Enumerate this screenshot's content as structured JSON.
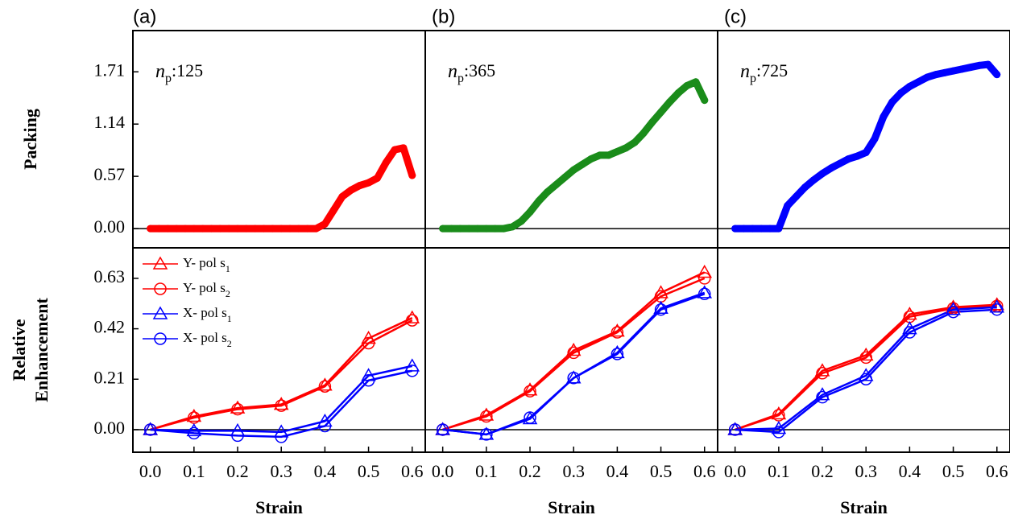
{
  "chart_data": [
    {
      "type": "scatter",
      "panel_label": "(a)",
      "annotation": "np:125",
      "ylabel": [
        "Packing"
      ],
      "x": [
        0,
        0.02,
        0.04,
        0.06,
        0.08,
        0.1,
        0.12,
        0.14,
        0.16,
        0.18,
        0.2,
        0.22,
        0.24,
        0.26,
        0.28,
        0.3,
        0.32,
        0.34,
        0.36,
        0.38,
        0.4,
        0.42,
        0.44,
        0.46,
        0.48,
        0.5,
        0.52,
        0.54,
        0.56,
        0.58,
        0.6
      ],
      "series": [
        {
          "color": "#ff0000",
          "values": [
            0,
            0,
            0,
            0,
            0,
            0,
            0,
            0,
            0,
            0,
            0,
            0,
            0,
            0,
            0,
            0,
            0,
            0,
            0,
            0,
            0.05,
            0.2,
            0.35,
            0.42,
            0.47,
            0.5,
            0.55,
            0.72,
            0.86,
            0.88,
            0.58
          ]
        }
      ],
      "xlim": [
        -0.04,
        0.63
      ],
      "ylim": [
        -0.21,
        2.16
      ],
      "yticks": [
        {
          "value": 0,
          "label": "0.00"
        },
        0.57,
        1.14,
        1.71
      ]
    },
    {
      "type": "scatter",
      "panel_label": "(b)",
      "annotation": "np:365",
      "x": [
        0,
        0.02,
        0.04,
        0.06,
        0.08,
        0.1,
        0.12,
        0.14,
        0.16,
        0.18,
        0.2,
        0.22,
        0.24,
        0.26,
        0.28,
        0.3,
        0.32,
        0.34,
        0.36,
        0.38,
        0.4,
        0.42,
        0.44,
        0.46,
        0.48,
        0.5,
        0.52,
        0.54,
        0.56,
        0.58,
        0.6
      ],
      "series": [
        {
          "color": "#1a8c1a",
          "values": [
            0,
            0,
            0,
            0,
            0,
            0,
            0,
            0,
            0.02,
            0.08,
            0.18,
            0.3,
            0.4,
            0.48,
            0.56,
            0.64,
            0.7,
            0.76,
            0.8,
            0.8,
            0.84,
            0.88,
            0.94,
            1.04,
            1.16,
            1.27,
            1.38,
            1.48,
            1.56,
            1.6,
            1.4
          ]
        }
      ],
      "xlim": [
        -0.04,
        0.63
      ],
      "ylim": [
        -0.21,
        2.16
      ]
    },
    {
      "type": "scatter",
      "panel_label": "(c)",
      "annotation": "np:725",
      "x": [
        0,
        0.02,
        0.04,
        0.06,
        0.08,
        0.1,
        0.12,
        0.14,
        0.16,
        0.18,
        0.2,
        0.22,
        0.24,
        0.26,
        0.28,
        0.3,
        0.32,
        0.34,
        0.36,
        0.38,
        0.4,
        0.42,
        0.44,
        0.46,
        0.48,
        0.5,
        0.52,
        0.54,
        0.56,
        0.58,
        0.6
      ],
      "series": [
        {
          "color": "#0000ff",
          "values": [
            0,
            0,
            0,
            0,
            0,
            0,
            0.25,
            0.35,
            0.45,
            0.53,
            0.6,
            0.66,
            0.71,
            0.76,
            0.79,
            0.83,
            0.98,
            1.22,
            1.38,
            1.48,
            1.55,
            1.6,
            1.65,
            1.68,
            1.7,
            1.72,
            1.74,
            1.76,
            1.78,
            1.79,
            1.68
          ]
        }
      ],
      "xlim": [
        -0.04,
        0.63
      ],
      "ylim": [
        -0.21,
        2.16
      ]
    },
    {
      "type": "line",
      "ylabel": [
        "Relative",
        "Enhancement"
      ],
      "xlabel": "Strain",
      "legend": "upper left",
      "x": [
        0,
        0.1,
        0.2,
        0.3,
        0.4,
        0.5,
        0.6
      ],
      "series": [
        {
          "name": "Y- pol s1",
          "color": "#ff0000",
          "marker": "triangle",
          "values": [
            0,
            0.055,
            0.09,
            0.105,
            0.185,
            0.38,
            0.465
          ]
        },
        {
          "name": "Y- pol s2",
          "color": "#ff0000",
          "marker": "circle",
          "values": [
            0,
            0.05,
            0.085,
            0.1,
            0.18,
            0.36,
            0.455
          ]
        },
        {
          "name": "X- pol s1",
          "color": "#0000ff",
          "marker": "triangle",
          "values": [
            0,
            -0.005,
            -0.005,
            -0.01,
            0.035,
            0.225,
            0.265
          ]
        },
        {
          "name": "X- pol s2",
          "color": "#0000ff",
          "marker": "circle",
          "values": [
            0,
            -0.015,
            -0.025,
            -0.03,
            0.015,
            0.205,
            0.245
          ]
        }
      ],
      "xlim": [
        -0.04,
        0.63
      ],
      "ylim": [
        -0.094,
        0.757
      ],
      "xticks": [
        {
          "value": 0,
          "label": "0.0"
        },
        0.1,
        0.2,
        0.3,
        0.4,
        0.5,
        0.6
      ],
      "yticks": [
        {
          "value": 0,
          "label": "0.00"
        },
        0.21,
        0.42,
        0.63
      ]
    },
    {
      "type": "line",
      "xlabel": "Strain",
      "x": [
        0,
        0.1,
        0.2,
        0.3,
        0.4,
        0.5,
        0.6
      ],
      "series": [
        {
          "color": "#ff0000",
          "marker": "triangle",
          "values": [
            0,
            0.06,
            0.165,
            0.33,
            0.41,
            0.57,
            0.655
          ]
        },
        {
          "color": "#ff0000",
          "marker": "circle",
          "values": [
            0,
            0.055,
            0.16,
            0.32,
            0.405,
            0.555,
            0.63
          ]
        },
        {
          "color": "#0000ff",
          "marker": "triangle",
          "values": [
            0,
            -0.02,
            0.045,
            0.215,
            0.32,
            0.505,
            0.57
          ]
        },
        {
          "color": "#0000ff",
          "marker": "circle",
          "values": [
            0,
            -0.02,
            0.05,
            0.215,
            0.315,
            0.5,
            0.565
          ]
        }
      ],
      "xlim": [
        -0.04,
        0.63
      ],
      "ylim": [
        -0.094,
        0.757
      ],
      "xticks": [
        {
          "value": 0,
          "label": "0.0"
        },
        0.1,
        0.2,
        0.3,
        0.4,
        0.5,
        0.6
      ]
    },
    {
      "type": "line",
      "xlabel": "Strain",
      "x": [
        0,
        0.1,
        0.2,
        0.3,
        0.4,
        0.5,
        0.6
      ],
      "series": [
        {
          "color": "#ff0000",
          "marker": "triangle",
          "values": [
            0,
            0.065,
            0.245,
            0.31,
            0.48,
            0.51,
            0.52
          ]
        },
        {
          "color": "#ff0000",
          "marker": "circle",
          "values": [
            0,
            0.06,
            0.235,
            0.3,
            0.47,
            0.505,
            0.515
          ]
        },
        {
          "color": "#0000ff",
          "marker": "triangle",
          "values": [
            0,
            0.005,
            0.145,
            0.225,
            0.42,
            0.5,
            0.51
          ]
        },
        {
          "color": "#0000ff",
          "marker": "circle",
          "values": [
            0,
            -0.01,
            0.135,
            0.21,
            0.405,
            0.49,
            0.5
          ]
        }
      ],
      "xlim": [
        -0.04,
        0.63
      ],
      "ylim": [
        -0.094,
        0.757
      ],
      "xticks": [
        {
          "value": 0,
          "label": "0.0"
        },
        0.1,
        0.2,
        0.3,
        0.4,
        0.5,
        0.6
      ]
    }
  ]
}
